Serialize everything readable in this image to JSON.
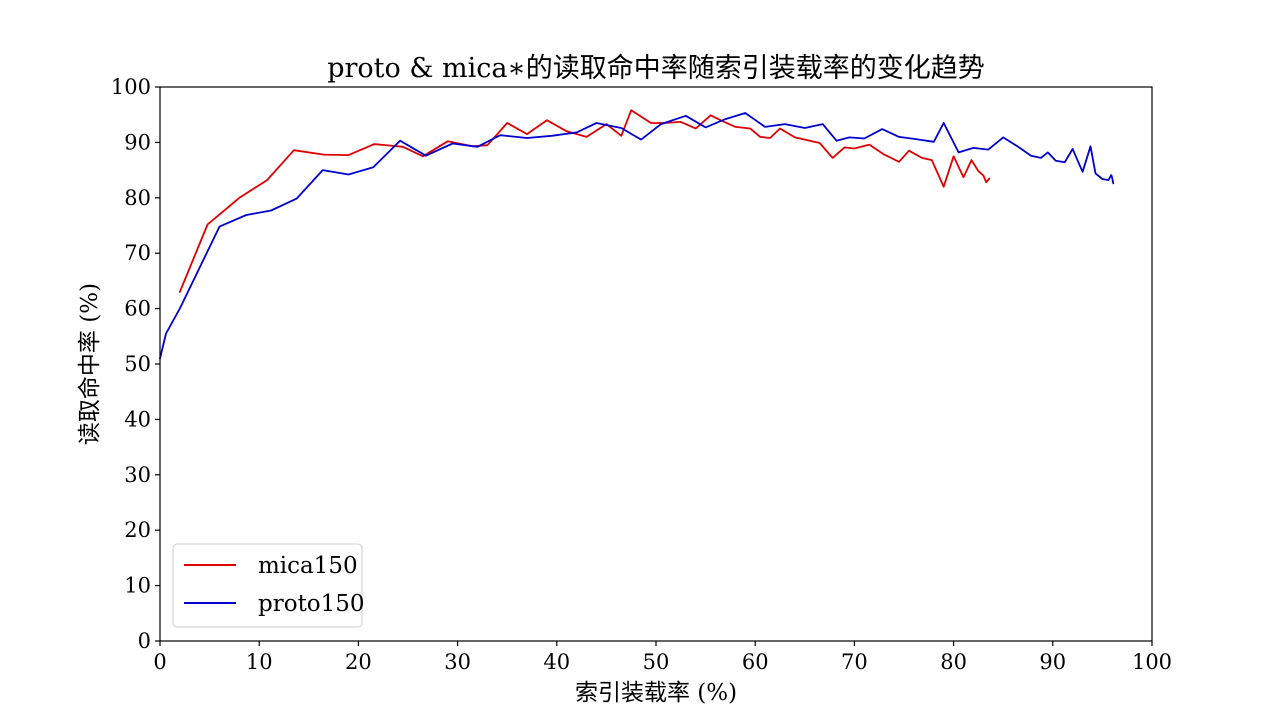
{
  "chart_data": {
    "type": "line",
    "title": "proto & mica∗的读取命中率随索引装载率的变化趋势",
    "xlabel": "索引装载率 (%)",
    "ylabel": "读取命中率 (%)",
    "xlim": [
      0,
      100
    ],
    "ylim": [
      0,
      100
    ],
    "xticks": [
      0,
      10,
      20,
      30,
      40,
      50,
      60,
      70,
      80,
      90,
      100
    ],
    "yticks": [
      0,
      10,
      20,
      30,
      40,
      50,
      60,
      70,
      80,
      90,
      100
    ],
    "grid": false,
    "legend_position": "lower-left",
    "series": [
      {
        "name": "mica150",
        "color": "#e00000",
        "x": [
          2.0,
          4.8,
          8.0,
          10.8,
          13.5,
          16.5,
          19.0,
          21.6,
          24.5,
          26.5,
          29.0,
          31.5,
          33.0,
          35.0,
          37.0,
          39.0,
          41.0,
          43.0,
          45.0,
          46.5,
          47.5,
          49.5,
          50.8,
          52.5,
          54.0,
          55.5,
          56.5,
          58.0,
          59.5,
          60.5,
          61.5,
          62.5,
          64.0,
          65.5,
          66.5,
          67.8,
          69.0,
          70.0,
          71.5,
          73.0,
          74.5,
          75.5,
          76.8,
          77.8,
          79.0,
          80.0,
          81.0,
          81.8,
          82.5,
          83.0,
          83.3,
          83.6
        ],
        "values": [
          63.0,
          75.2,
          80.0,
          83.2,
          88.6,
          87.8,
          87.7,
          89.7,
          89.2,
          87.5,
          90.2,
          89.3,
          89.5,
          93.5,
          91.5,
          94.0,
          92.0,
          91.0,
          93.3,
          91.2,
          95.8,
          93.5,
          93.5,
          93.7,
          92.5,
          94.9,
          94.0,
          92.8,
          92.5,
          91.0,
          90.8,
          92.5,
          90.9,
          90.3,
          89.9,
          87.2,
          89.1,
          88.9,
          89.6,
          87.8,
          86.5,
          88.5,
          87.2,
          86.8,
          82.0,
          87.5,
          83.7,
          86.8,
          84.8,
          84.0,
          82.8,
          83.5
        ]
      },
      {
        "name": "proto150",
        "color": "#0000d0",
        "x": [
          0.0,
          0.6,
          2.0,
          6.0,
          8.7,
          11.2,
          13.8,
          16.4,
          19.0,
          21.5,
          24.2,
          26.8,
          29.5,
          32.0,
          34.3,
          37.0,
          39.5,
          42.0,
          44.0,
          46.5,
          48.5,
          50.5,
          53.0,
          55.0,
          57.0,
          59.0,
          61.0,
          63.0,
          65.0,
          66.8,
          68.2,
          69.5,
          71.0,
          72.8,
          74.5,
          76.2,
          78.0,
          79.0,
          80.5,
          82.0,
          83.5,
          85.0,
          86.5,
          87.8,
          88.8,
          89.5,
          90.3,
          91.2,
          92.0,
          93.0,
          93.8,
          94.3,
          95.0,
          95.6,
          95.9,
          96.0,
          96.1
        ],
        "values": [
          51.0,
          55.5,
          60.0,
          74.8,
          76.9,
          77.7,
          79.9,
          85.0,
          84.2,
          85.5,
          90.3,
          87.6,
          89.8,
          89.2,
          91.3,
          90.8,
          91.2,
          91.8,
          93.5,
          92.6,
          90.5,
          93.3,
          94.8,
          92.7,
          94.2,
          95.3,
          92.8,
          93.3,
          92.6,
          93.3,
          90.3,
          90.9,
          90.7,
          92.4,
          91.0,
          90.6,
          90.1,
          93.5,
          88.2,
          89.0,
          88.7,
          90.9,
          89.2,
          87.6,
          87.2,
          88.2,
          86.7,
          86.4,
          88.8,
          84.7,
          89.3,
          84.4,
          83.4,
          83.2,
          84.1,
          83.5,
          82.6
        ]
      }
    ]
  }
}
